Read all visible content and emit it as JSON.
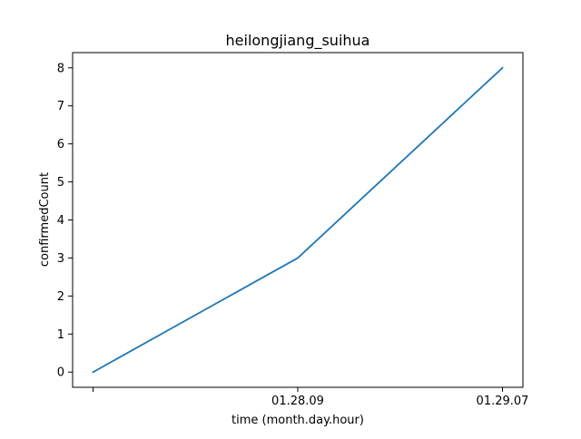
{
  "chart_data": {
    "type": "line",
    "title": "heilongjiang_suihua",
    "xlabel": "time (month.day.hour)",
    "ylabel": "confirmedCount",
    "x": [
      "",
      "01.28.09",
      "01.29.07"
    ],
    "series": [
      {
        "values": [
          0,
          3,
          8
        ],
        "color": "#1f77b4"
      }
    ],
    "ylim": [
      -0.4,
      8.4
    ],
    "yticks": [
      0,
      1,
      2,
      3,
      4,
      5,
      6,
      7,
      8
    ],
    "grid": false,
    "legend": "none"
  }
}
